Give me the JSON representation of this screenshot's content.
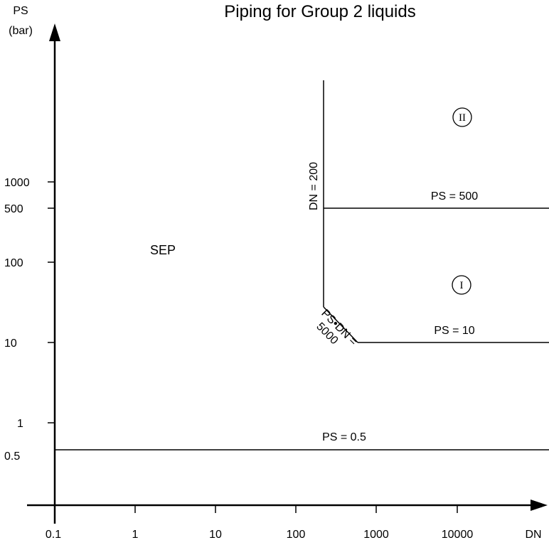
{
  "title": "Piping for Group 2 liquids",
  "y_axis": {
    "label_line1": "PS",
    "label_line2": "(bar)"
  },
  "x_axis": {
    "label": "DN"
  },
  "x_ticks": [
    "0.1",
    "1",
    "10",
    "100",
    "1000",
    "10000"
  ],
  "y_ticks": [
    "1000",
    "500",
    "100",
    "10",
    "1",
    "0.5"
  ],
  "region_labels": {
    "sep": "SEP",
    "cat1": "I",
    "cat2": "II"
  },
  "boundaries": {
    "dn200": "DN = 200",
    "ps500": "PS = 500",
    "ps10": "PS = 10",
    "ps05": "PS = 0.5",
    "psdn_line1": "PS•DN =",
    "psdn_line2": "5000"
  },
  "chart_data": {
    "type": "diagram",
    "title": "Piping for Group 2 liquids",
    "xlabel": "DN",
    "ylabel": "PS (bar)",
    "x_scale": "log",
    "y_scale": "log",
    "boundaries": [
      {
        "label": "PS = 0.5",
        "ps": 0.5
      },
      {
        "label": "PS = 10",
        "ps": 10
      },
      {
        "label": "PS = 500",
        "ps": 500
      },
      {
        "label": "DN = 200",
        "dn": 200
      },
      {
        "label": "PS•DN = 5000",
        "ps_dn": 5000
      }
    ],
    "regions": [
      "SEP",
      "I",
      "II"
    ]
  }
}
